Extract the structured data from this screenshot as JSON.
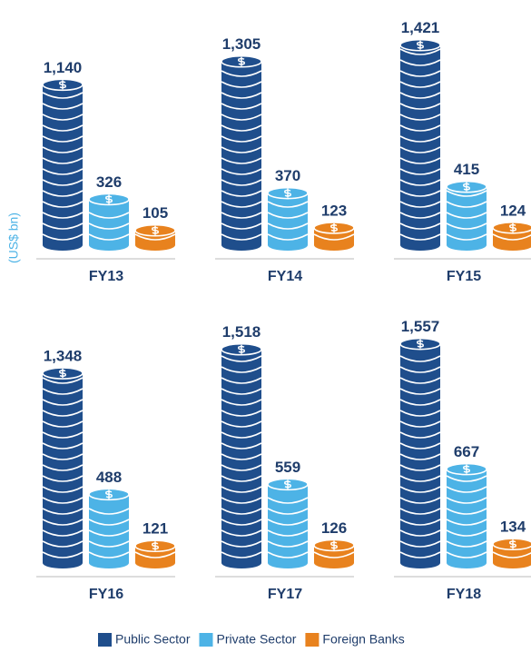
{
  "chart_data": {
    "type": "bar",
    "y_label": "(US$ bn)",
    "categories": [
      "FY13",
      "FY14",
      "FY15",
      "FY16",
      "FY17",
      "FY18"
    ],
    "series": [
      {
        "name": "Public Sector",
        "color": "#1f4e8c",
        "values": [
          1140,
          1305,
          1421,
          1348,
          1518,
          1557
        ],
        "value_labels": [
          "1,140",
          "1,305",
          "1,421",
          "1,348",
          "1,518",
          "1,557"
        ]
      },
      {
        "name": "Private Sector",
        "color": "#4db3e6",
        "values": [
          326,
          370,
          415,
          488,
          559,
          667
        ]
      },
      {
        "name": "Foreign Banks",
        "color": "#e8821e",
        "values": [
          105,
          123,
          124,
          121,
          126,
          134
        ]
      }
    ]
  }
}
